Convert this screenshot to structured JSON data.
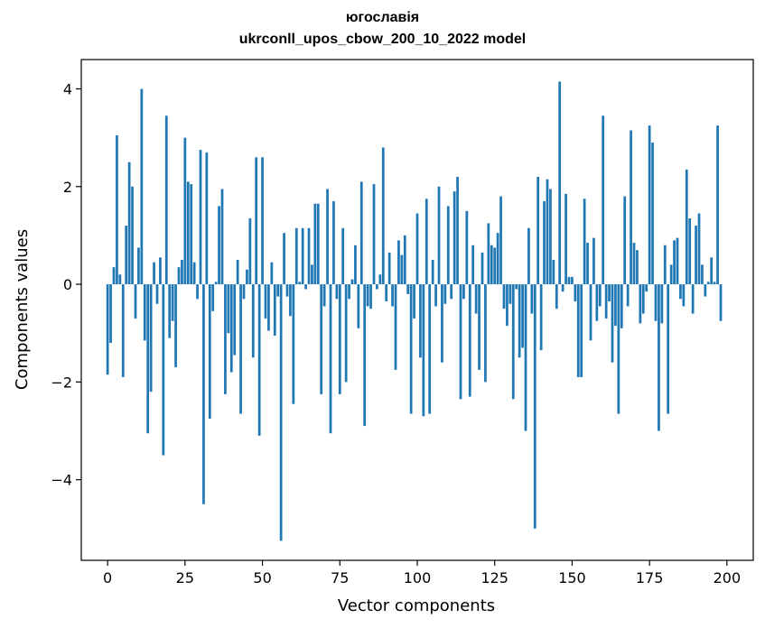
{
  "chart_data": {
    "type": "bar",
    "title": "югославія",
    "subtitle": "ukrconll_upos_cbow_200_10_2022 model",
    "xlabel": "Vector components",
    "ylabel": "Components values",
    "xlim": [
      -8.5,
      208.5
    ],
    "ylim": [
      -5.65,
      4.6
    ],
    "xticks": [
      0,
      25,
      50,
      75,
      100,
      125,
      150,
      175,
      200
    ],
    "yticks": [
      -4,
      -2,
      0,
      2,
      4
    ],
    "ytick_labels": [
      "−4",
      "−2",
      "0",
      "2",
      "4"
    ],
    "grid": false,
    "bar_color": "#1f77b4",
    "series": [
      {
        "values": [
          -1.85,
          -1.2,
          0.35,
          3.05,
          0.2,
          -1.9,
          1.2,
          2.5,
          2.0,
          -0.7,
          0.75,
          4.0,
          -1.15,
          -3.05,
          -2.2,
          0.45,
          -0.4,
          0.55,
          -3.5,
          3.45,
          -1.1,
          -0.75,
          -1.7,
          0.35,
          0.5,
          3.0,
          2.1,
          2.05,
          0.45,
          -0.3,
          2.75,
          -4.5,
          2.7,
          -2.75,
          -0.55,
          0.05,
          1.6,
          1.95,
          -2.25,
          -1.0,
          -1.8,
          -1.45,
          0.5,
          -2.65,
          -0.3,
          0.3,
          1.35,
          -1.5,
          2.6,
          -3.1,
          2.6,
          -0.7,
          -0.95,
          0.45,
          -1.05,
          -0.25,
          -5.25,
          1.05,
          -0.25,
          -0.65,
          -2.45,
          1.15,
          0.05,
          1.15,
          -0.1,
          1.15,
          0.4,
          1.65,
          1.65,
          -2.25,
          -0.45,
          1.95,
          -3.05,
          1.7,
          -0.3,
          -2.25,
          1.15,
          -2.0,
          -0.3,
          0.1,
          0.8,
          -0.9,
          2.1,
          -2.9,
          -0.45,
          -0.5,
          2.05,
          -0.1,
          0.2,
          2.8,
          -0.35,
          0.65,
          -0.45,
          -1.75,
          0.9,
          0.6,
          1.0,
          -0.2,
          -2.65,
          -0.7,
          1.45,
          -1.5,
          -2.7,
          1.75,
          -2.65,
          0.5,
          -0.45,
          2.0,
          -1.6,
          -0.4,
          1.6,
          -0.3,
          1.9,
          2.2,
          -2.35,
          -0.3,
          1.5,
          -2.3,
          0.8,
          -0.6,
          -1.75,
          0.65,
          -2.0,
          1.25,
          0.8,
          0.75,
          1.05,
          1.8,
          -0.5,
          -0.85,
          -0.4,
          -2.35,
          -0.1,
          -1.5,
          -1.3,
          -3.0,
          1.15,
          -0.6,
          -5.0,
          2.2,
          -1.35,
          1.7,
          2.15,
          1.95,
          0.5,
          -0.5,
          4.15,
          -0.15,
          1.85,
          0.15,
          0.15,
          -0.35,
          -1.9,
          -1.9,
          1.75,
          0.85,
          -1.15,
          0.95,
          -0.75,
          -0.45,
          3.45,
          -0.7,
          -0.35,
          -1.6,
          -0.85,
          -2.65,
          -0.9,
          1.8,
          -0.45,
          3.15,
          0.85,
          0.7,
          -0.8,
          -0.6,
          -0.15,
          3.25,
          2.9,
          -0.75,
          -3.0,
          -0.8,
          0.8,
          -2.65,
          0.4,
          0.9,
          0.95,
          -0.3,
          -0.45,
          2.35,
          1.35,
          -0.6,
          1.2,
          1.45,
          0.4,
          -0.25,
          0.05,
          0.55,
          0.05,
          3.25,
          -0.75
        ]
      }
    ]
  }
}
